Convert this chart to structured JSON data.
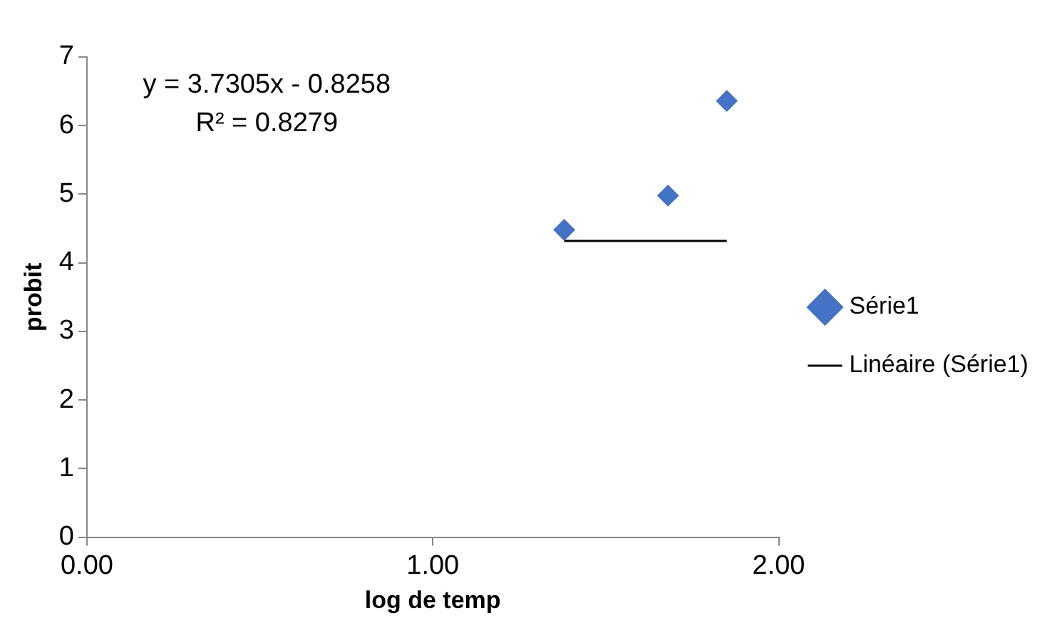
{
  "chart_data": {
    "type": "scatter",
    "xlabel": "log de temp",
    "ylabel": "probit",
    "x": [
      1.38,
      1.68,
      1.85
    ],
    "series": [
      {
        "name": "Série1",
        "color": "#4472c4",
        "values": [
          4.48,
          4.98,
          6.36
        ],
        "marker": "diamond"
      },
      {
        "name": "Linéaire (Série1)",
        "type": "line",
        "color": "#000000",
        "x": [
          1.38,
          1.85
        ],
        "values": [
          4.32,
          4.32
        ],
        "marker": "none",
        "line_style": "solid"
      }
    ],
    "xlim": [
      0,
      2
    ],
    "xticks": [
      {
        "value": 0,
        "label": "0.00"
      },
      {
        "value": 1,
        "label": "1.00"
      },
      {
        "value": 2,
        "label": "2.00"
      }
    ],
    "ylim": [
      0,
      7
    ],
    "yticks": [
      0,
      1,
      2,
      3,
      4,
      5,
      6,
      7
    ],
    "grid": false,
    "legend": "right",
    "annotations": [
      "y = 3.7305x - 0.8258",
      "R² = 0.8279"
    ]
  }
}
